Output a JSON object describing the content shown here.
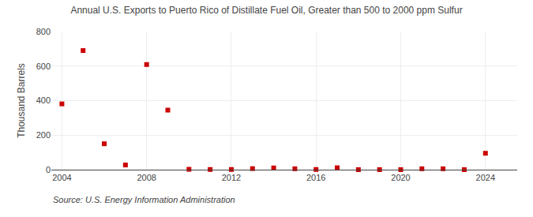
{
  "chart_data": {
    "type": "scatter",
    "title": "Annual U.S. Exports to Puerto Rico of Distillate Fuel Oil, Greater than 500 to 2000 ppm Sulfur",
    "ylabel": "Thousand Barrels",
    "annotations": [
      "Source: U.S. Energy Information Administration"
    ],
    "x": [
      2004,
      2005,
      2006,
      2007,
      2008,
      2009,
      2010,
      2011,
      2012,
      2013,
      2014,
      2015,
      2016,
      2017,
      2018,
      2019,
      2020,
      2021,
      2022,
      2023,
      2024
    ],
    "values": [
      381,
      690,
      150,
      27,
      609,
      345,
      2,
      1,
      1,
      6,
      10,
      5,
      1,
      11,
      0,
      0,
      0,
      5,
      5,
      0,
      95
    ],
    "color": "#cc0000",
    "marker": "square",
    "xlim": [
      2003.5,
      2025.5
    ],
    "xticks": [
      2004,
      2008,
      2012,
      2016,
      2020,
      2024
    ],
    "ylim": [
      0,
      800
    ],
    "yticks": [
      0,
      200,
      400,
      600,
      800
    ],
    "grid": true
  }
}
